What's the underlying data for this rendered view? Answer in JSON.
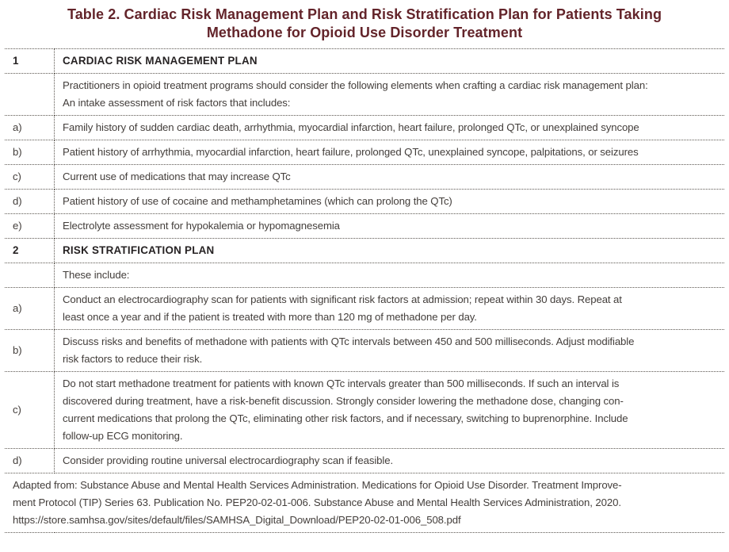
{
  "title": "Table 2. Cardiac Risk Management Plan and Risk Stratification Plan for Patients Taking\nMethadone for Opioid Use Disorder Treatment",
  "rows": [
    {
      "label": "1",
      "text": "CARDIAC RISK MANAGEMENT PLAN"
    },
    {
      "label": "",
      "text": "Practitioners in opioid treatment programs should consider the following elements when crafting a cardiac risk management plan:\nAn intake assessment of risk factors that includes:"
    },
    {
      "label": "a)",
      "text": "Family history of sudden cardiac death, arrhythmia, myocardial infarction, heart failure, prolonged QTc, or unexplained syncope"
    },
    {
      "label": "b)",
      "text": "Patient history of arrhythmia, myocardial infarction, heart failure, prolonged QTc, unexplained syncope, palpitations, or seizures"
    },
    {
      "label": "c)",
      "text": "Current use of medications that may increase QTc"
    },
    {
      "label": "d)",
      "text": "Patient history of use of cocaine and methamphetamines (which can prolong the QTc)"
    },
    {
      "label": "e)",
      "text": "Electrolyte assessment for hypokalemia or hypomagnesemia"
    },
    {
      "label": "2",
      "text": "RISK STRATIFICATION PLAN"
    },
    {
      "label": "",
      "text": "These include:"
    },
    {
      "label": "a)",
      "text": "Conduct an electrocardiography scan for patients with significant risk factors at admission; repeat within 30 days. Repeat at\nleast once a year and if the patient is treated with more than 120 mg of methadone per day."
    },
    {
      "label": "b)",
      "text": "Discuss risks and benefits of methadone with patients with QTc intervals between 450 and 500 milliseconds. Adjust modifiable\nrisk factors to reduce their risk."
    },
    {
      "label": "c)",
      "text": "Do not start methadone treatment for patients with known QTc intervals greater than 500 milliseconds. If such an interval is\ndiscovered during treatment, have a risk-benefit discussion. Strongly consider lowering the methadone dose, changing con-\ncurrent medications that prolong the QTc, eliminating other risk factors, and if necessary, switching to buprenorphine. Include\nfollow-up ECG monitoring."
    },
    {
      "label": "d)",
      "text": "Consider providing routine universal electrocardiography scan if feasible."
    }
  ],
  "footnote": "Adapted from: Substance Abuse and Mental Health Services Administration. Medications for Opioid Use Disorder. Treatment Improve-\nment Protocol (TIP) Series 63. Publication No. PEP20-02-01-006. Substance Abuse and Mental Health Services Administration, 2020.\nhttps://store.samhsa.gov/sites/default/files/SAMHSA_Digital_Download/PEP20-02-01-006_508.pdf",
  "colors": {
    "title_text": "#63242a",
    "body_text": "#433e3b",
    "header_text": "#262223",
    "border": "#5c5751",
    "background": "#ffffff"
  }
}
